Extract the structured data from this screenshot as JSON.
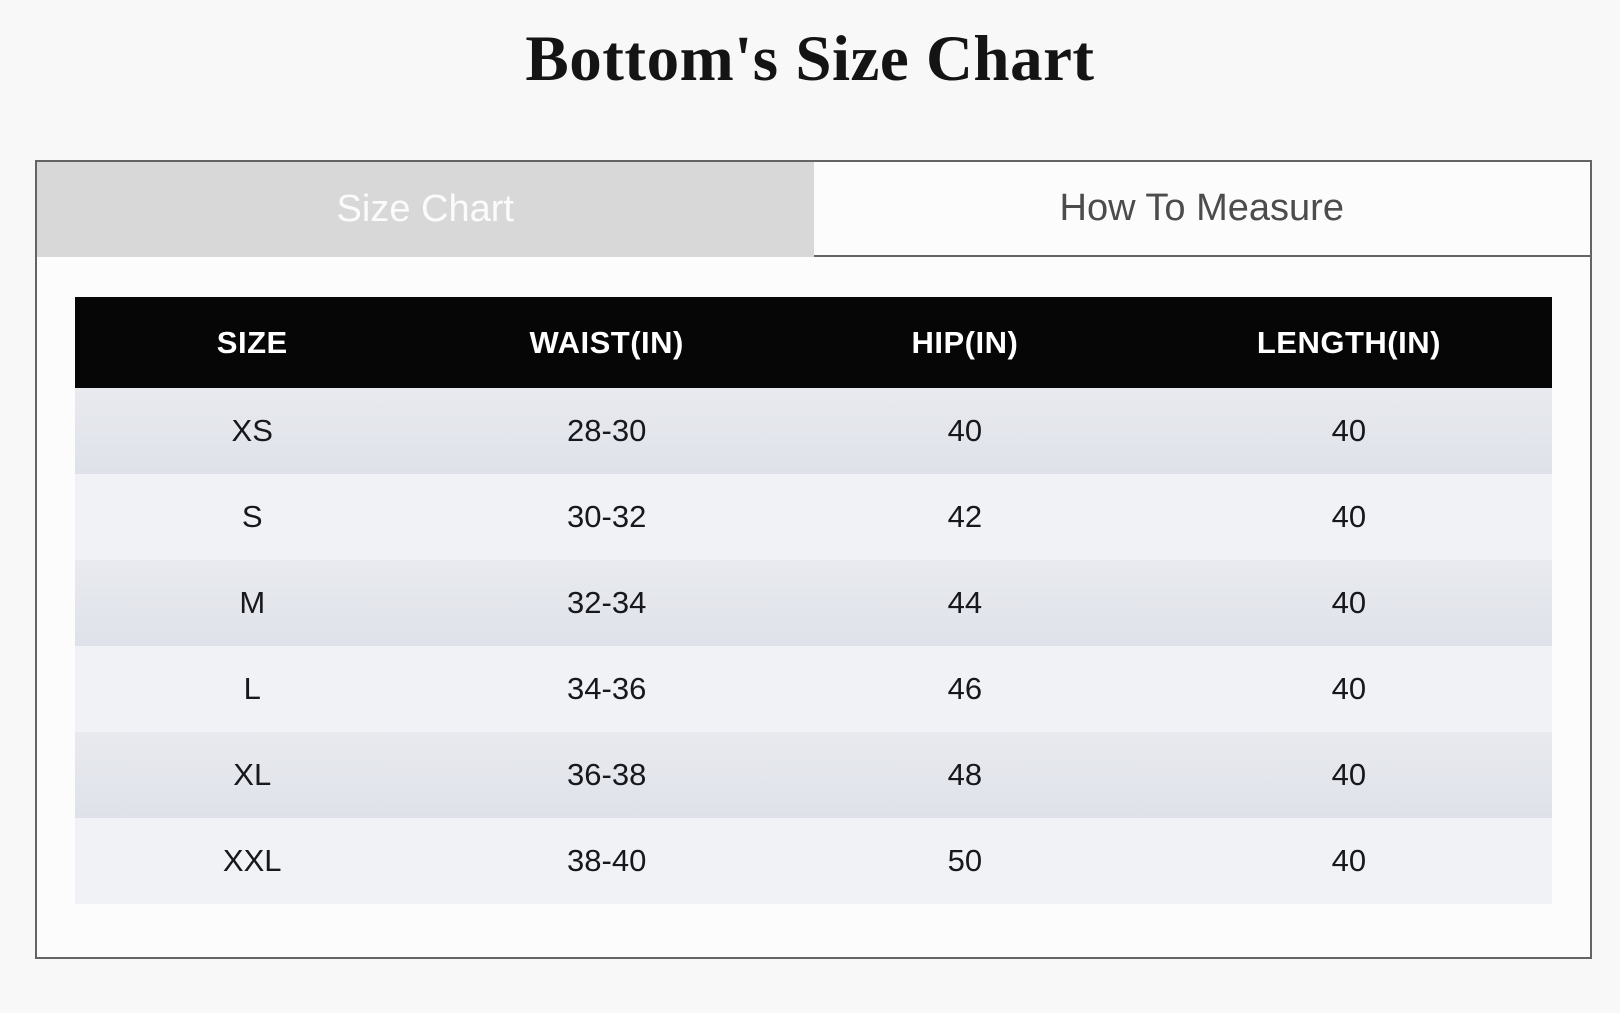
{
  "page": {
    "title": "Bottom's Size Chart"
  },
  "tabs": [
    {
      "label": "Size Chart",
      "active": true
    },
    {
      "label": "How To Measure",
      "active": false
    }
  ],
  "size_table": {
    "columns": [
      "SIZE",
      "WAIST(IN)",
      "HIP(IN)",
      "LENGTH(IN)"
    ],
    "rows": [
      [
        "XS",
        "28-30",
        "40",
        "40"
      ],
      [
        "S",
        "30-32",
        "42",
        "40"
      ],
      [
        "M",
        "32-34",
        "44",
        "40"
      ],
      [
        "L",
        "34-36",
        "46",
        "40"
      ],
      [
        "XL",
        "36-38",
        "48",
        "40"
      ],
      [
        "XXL",
        "38-40",
        "50",
        "40"
      ]
    ]
  },
  "colors": {
    "page_background": "#f8f8f8",
    "panel_border": "#646464",
    "active_tab_background": "#d8d8d8",
    "active_tab_text": "#fbfbfb",
    "inactive_tab_background": "#fcfcfc",
    "inactive_tab_text": "#4c4c4c",
    "table_header_background": "#060606",
    "table_header_text": "#ffffff",
    "row_odd_background": "#e3e6ec",
    "row_even_background": "#f1f2f5",
    "cell_text": "#17171c"
  }
}
